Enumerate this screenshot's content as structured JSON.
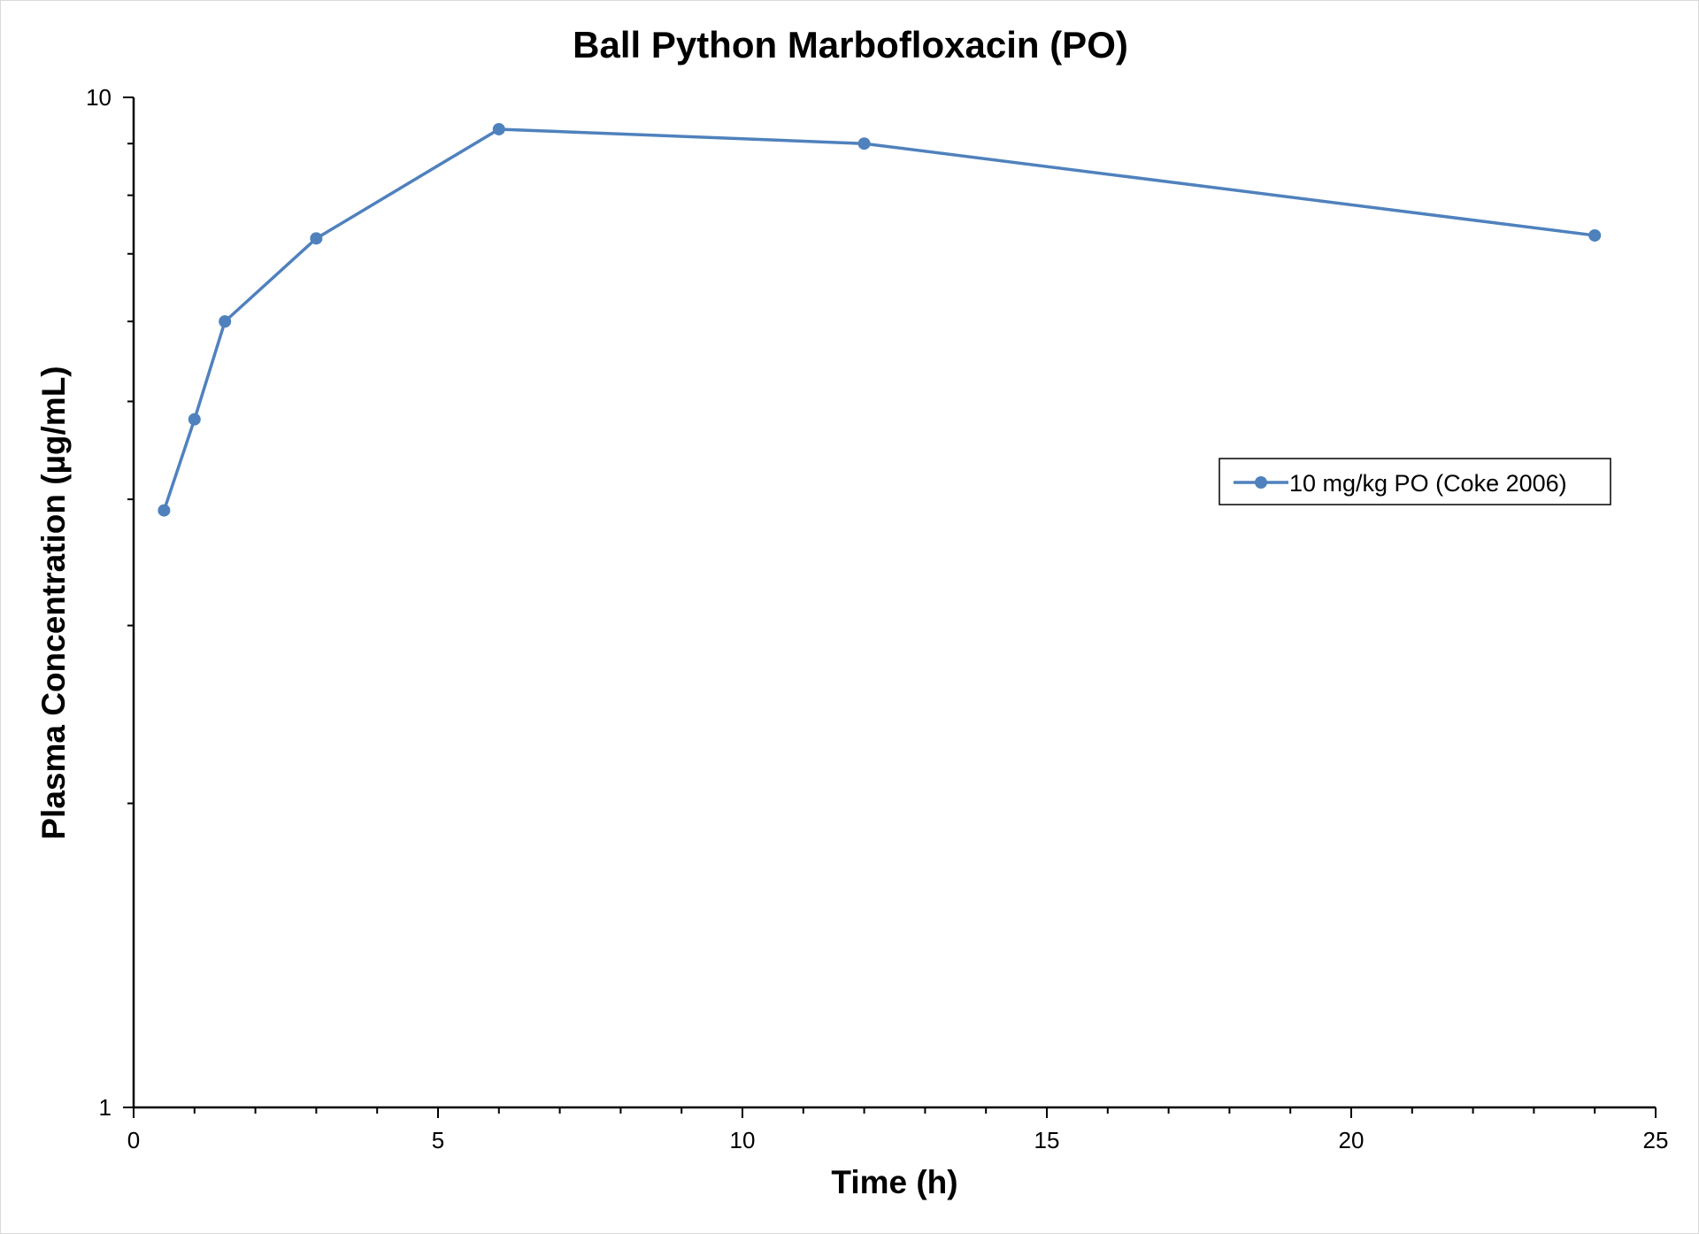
{
  "chart_data": {
    "type": "line",
    "title": "Ball Python Marbofloxacin (PO)",
    "xlabel": "Time (h)",
    "ylabel": "Plasma Concentration (µg/mL)",
    "xlim": [
      0,
      25
    ],
    "ylim": [
      1,
      10
    ],
    "yscale": "log",
    "grid": false,
    "legend_position": "right",
    "xticks": [
      0,
      5,
      10,
      15,
      20,
      25
    ],
    "xtick_labels": [
      "0",
      "5",
      "10",
      "15",
      "20",
      "25"
    ],
    "yticks": [
      1,
      10
    ],
    "ytick_labels": [
      "1",
      "10"
    ],
    "series": [
      {
        "name": "10 mg/kg PO (Coke 2006)",
        "color": "#4f81bd",
        "marker": "circle",
        "x": [
          0.5,
          1,
          1.5,
          3,
          6,
          12,
          24
        ],
        "y": [
          3.9,
          4.8,
          6.0,
          7.25,
          9.3,
          9.0,
          7.3
        ]
      }
    ]
  }
}
